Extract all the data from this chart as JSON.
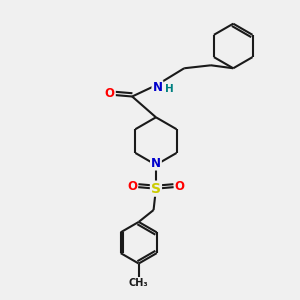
{
  "bg_color": "#f0f0f0",
  "bond_color": "#1a1a1a",
  "bond_width": 1.5,
  "atom_colors": {
    "O": "#ff0000",
    "N": "#0000cc",
    "S": "#cccc00",
    "C": "#1a1a1a",
    "H": "#008080"
  },
  "figsize": [
    3.0,
    3.0
  ],
  "dpi": 100
}
